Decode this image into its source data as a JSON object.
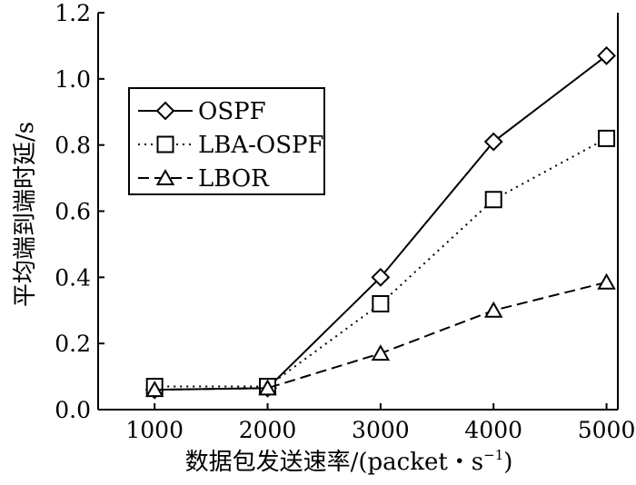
{
  "chart_data": {
    "type": "line",
    "x": [
      1000,
      2000,
      3000,
      4000,
      5000
    ],
    "xticks": [
      "1000",
      "2000",
      "3000",
      "4000",
      "5000"
    ],
    "yticks": [
      "0.0",
      "0.2",
      "0.4",
      "0.6",
      "0.8",
      "1.0",
      "1.2"
    ],
    "xlim": [
      500,
      5100
    ],
    "ylim": [
      0,
      1.2
    ],
    "xlabel": "数据包发送速率/(packet・s",
    "xlabel_sup": "−1",
    "xlabel_end": ")",
    "ylabel": "平均端到端时延/s",
    "grid": false,
    "legend_position": "upper-left",
    "series": [
      {
        "name": "OSPF",
        "marker": "diamond",
        "line": "solid",
        "color": "#000000",
        "values": [
          0.06,
          0.065,
          0.4,
          0.81,
          1.07
        ]
      },
      {
        "name": "LBA-OSPF",
        "marker": "square",
        "line": "dotted",
        "color": "#000000",
        "values": [
          0.07,
          0.07,
          0.32,
          0.635,
          0.82
        ]
      },
      {
        "name": "LBOR",
        "marker": "triangle",
        "line": "dashed",
        "color": "#000000",
        "values": [
          0.06,
          0.065,
          0.17,
          0.3,
          0.385
        ]
      }
    ]
  }
}
